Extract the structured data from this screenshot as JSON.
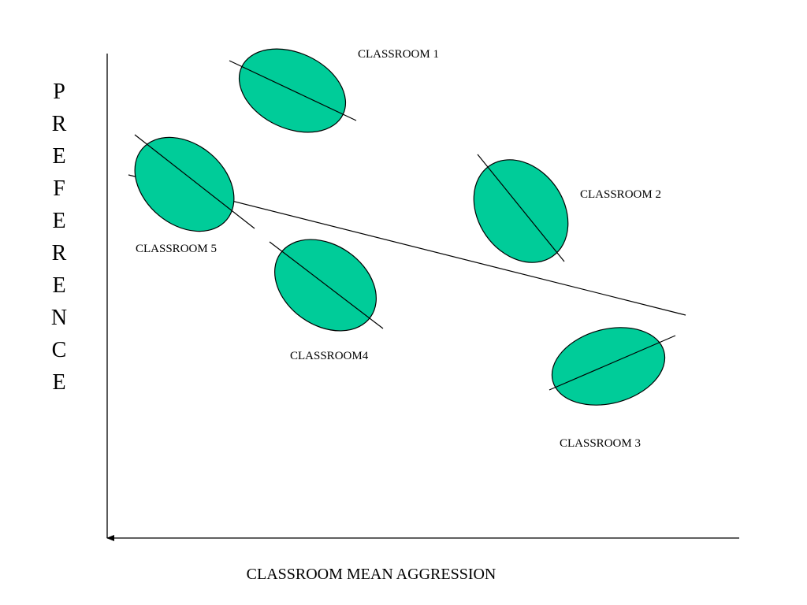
{
  "y_axis_label": "PREFERENCE",
  "x_axis_label": "CLASSROOM MEAN AGGRESSION",
  "groups": [
    {
      "label": "CLASSROOM 1"
    },
    {
      "label": "CLASSROOM 2"
    },
    {
      "label": "CLASSROOM 3"
    },
    {
      "label": "CLASSROOM4"
    },
    {
      "label": "CLASSROOM 5"
    }
  ]
}
